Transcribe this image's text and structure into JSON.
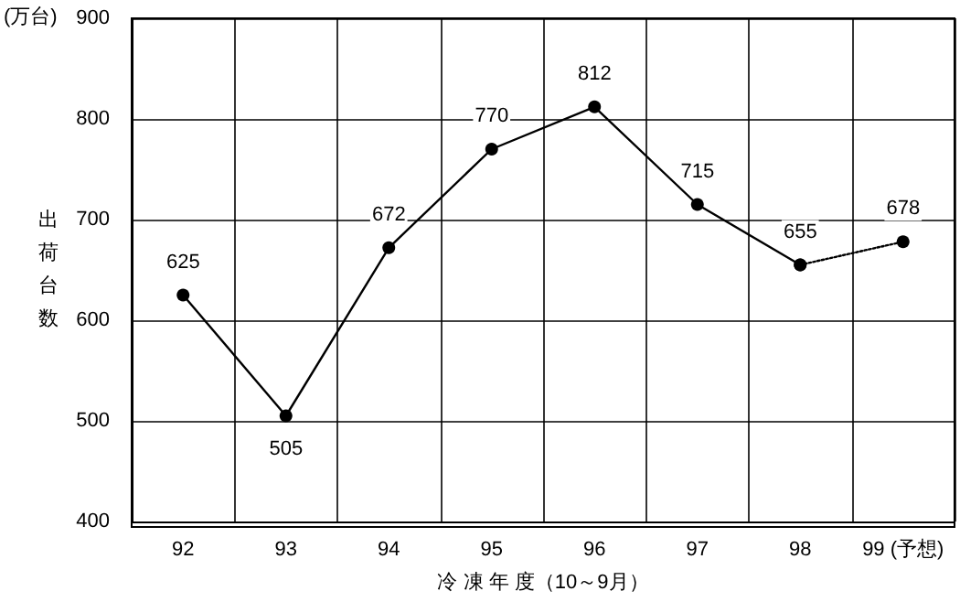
{
  "chart_data": {
    "type": "line",
    "xlabel": "冷 凍 年 度（10～9月）",
    "ylabel": "出荷台数",
    "annotations": [
      "(万台)"
    ],
    "categories": [
      "92",
      "93",
      "94",
      "95",
      "96",
      "97",
      "98",
      "99 (予想)"
    ],
    "series": [
      {
        "color": "#000000",
        "line_style": "solid",
        "values": [
          625,
          505,
          672,
          770,
          812,
          715,
          655,
          null
        ]
      },
      {
        "color": "#000000",
        "line_style": "dotted",
        "values": [
          null,
          null,
          null,
          null,
          null,
          null,
          655,
          678
        ],
        "value_labels": [
          null,
          null,
          null,
          null,
          null,
          null,
          null,
          "678"
        ]
      }
    ],
    "data_labels": true,
    "ylim": [
      400,
      900
    ],
    "yticks": [
      400,
      500,
      600,
      700,
      800,
      900
    ],
    "grid": true,
    "marker": "circle"
  }
}
